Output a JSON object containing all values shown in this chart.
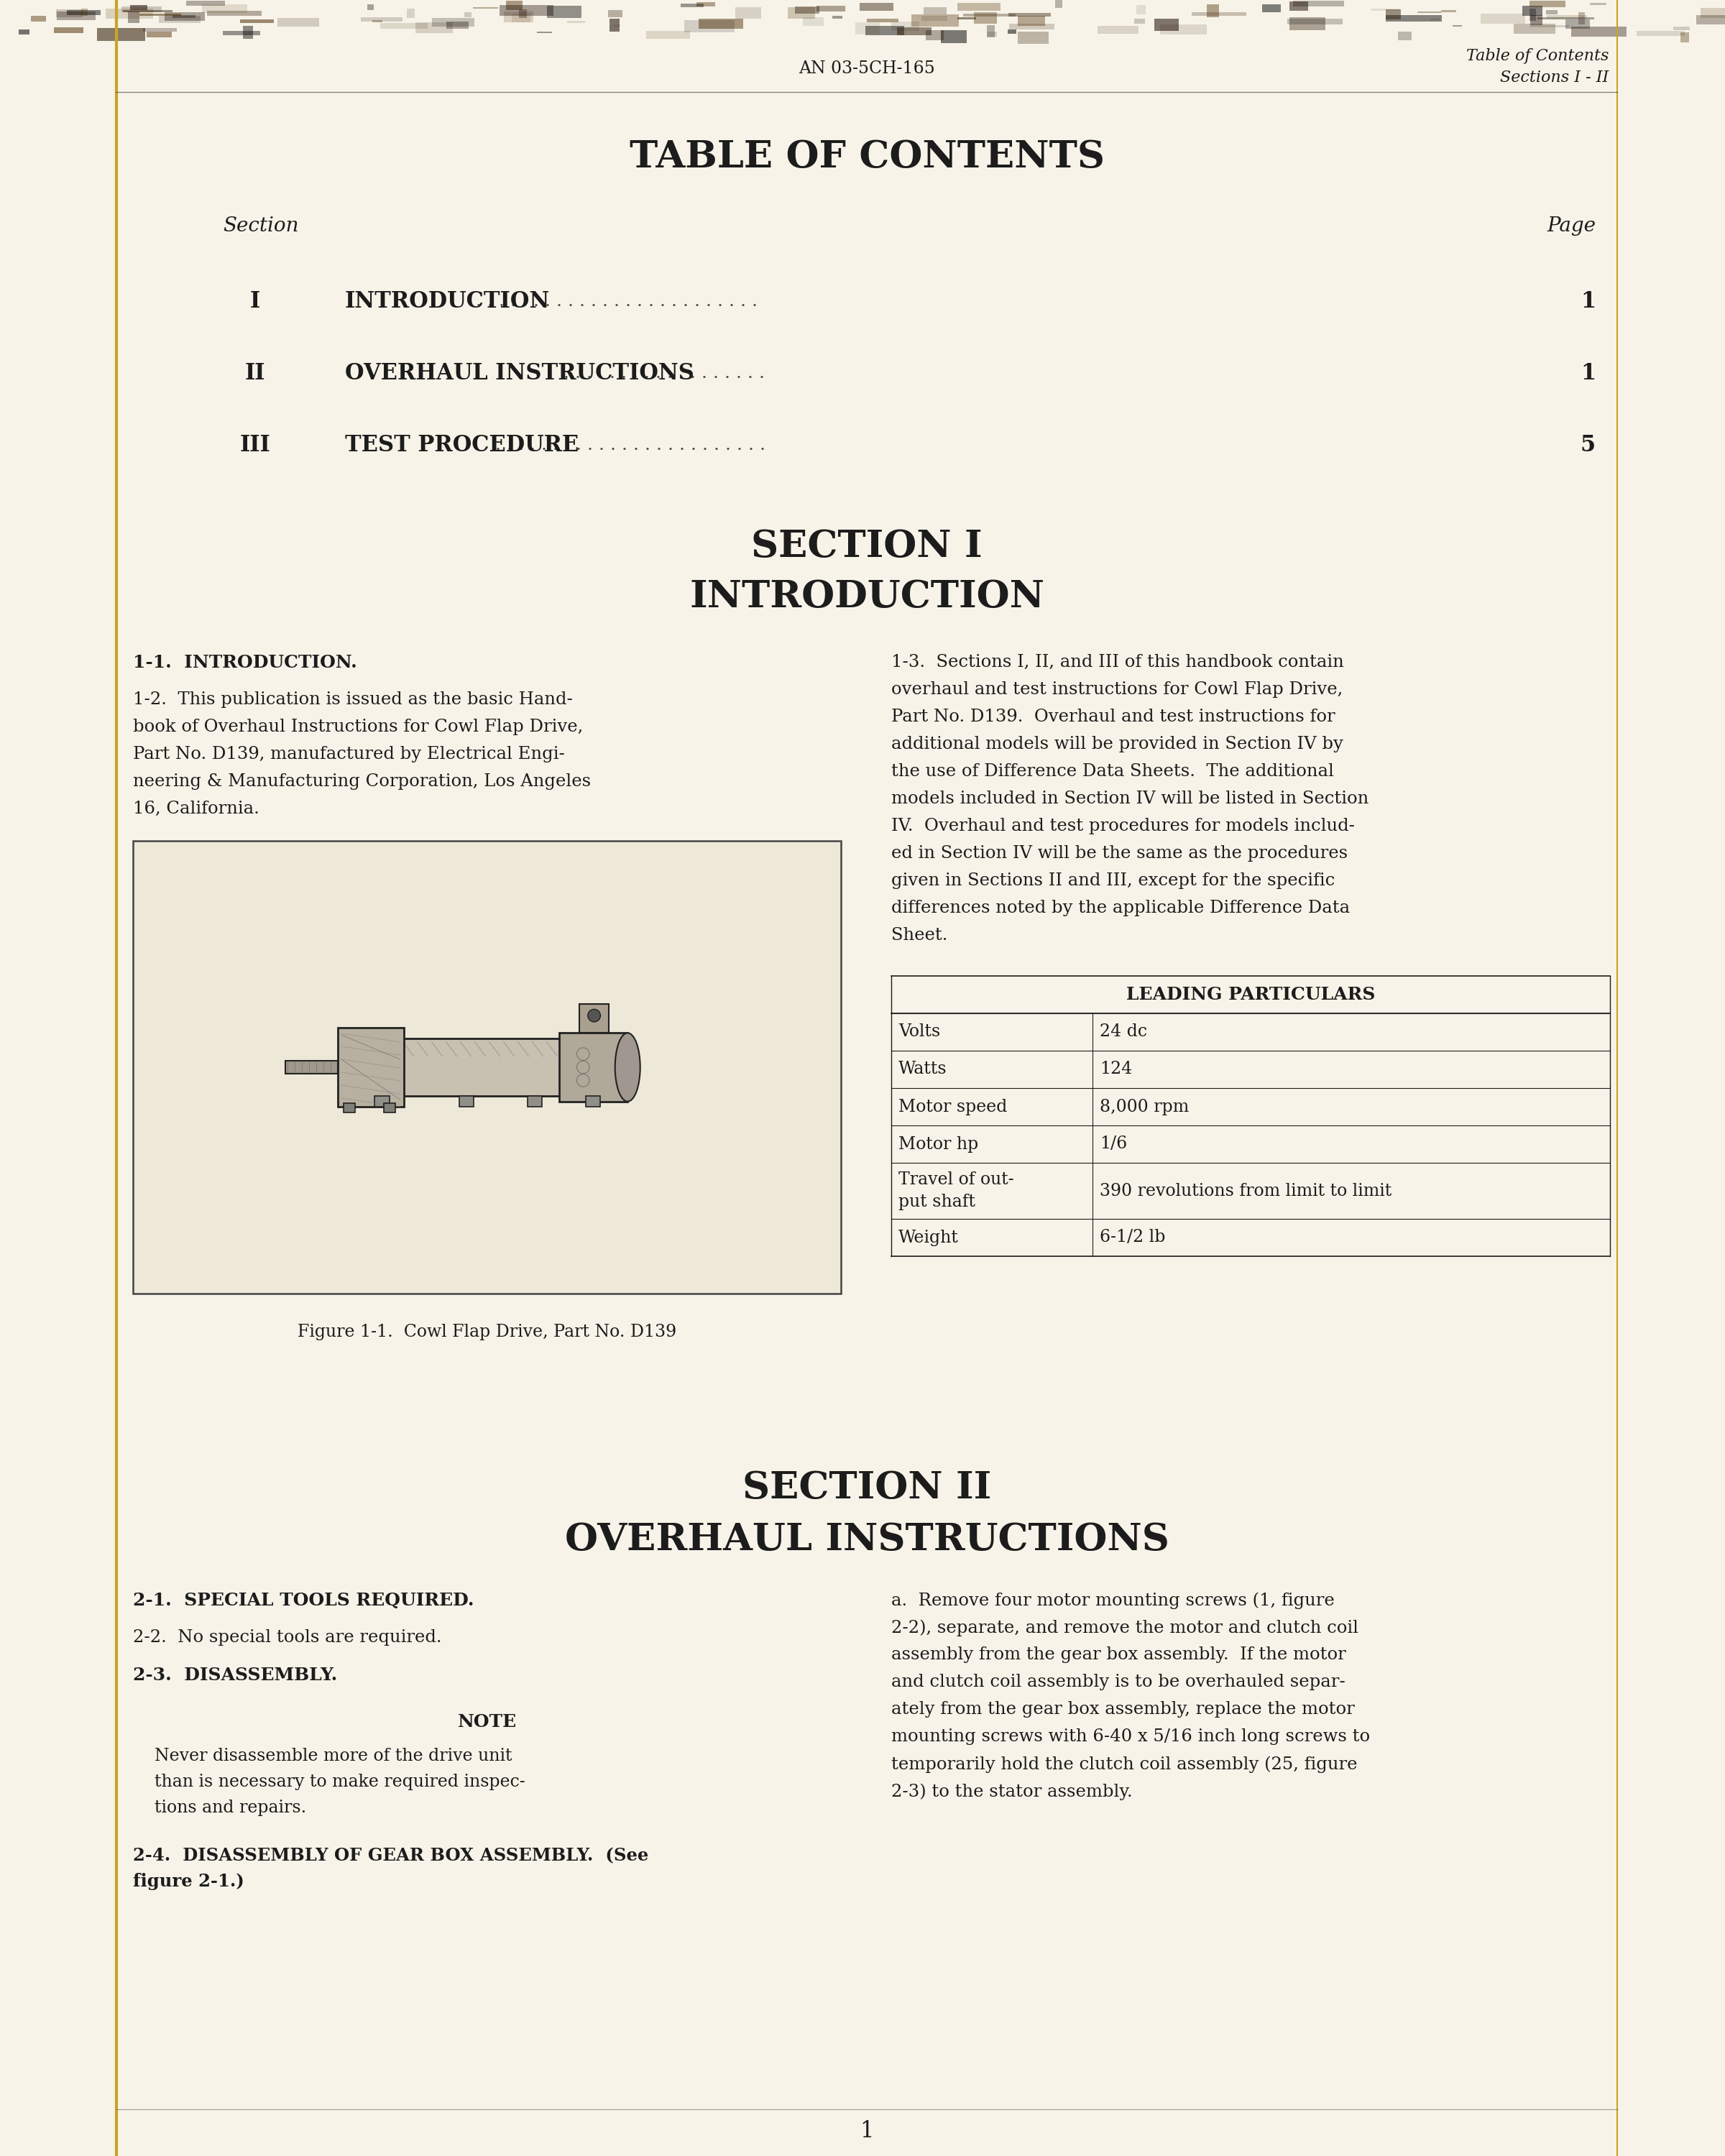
{
  "page_bg": "#f7f3e8",
  "text_color": "#1c1c1c",
  "header_doc_num": "AN 03-5CH-165",
  "header_right_line1": "Table of Contents",
  "header_right_line2": "Sections I - II",
  "toc_title": "TABLE OF CONTENTS",
  "toc_section_label": "Section",
  "toc_page_label": "Page",
  "toc_entries": [
    {
      "roman": "I",
      "title": "INTRODUCTION",
      "dots": ". . . . . . . . . . . . . . . . . . . . . . . . .",
      "page": "1"
    },
    {
      "roman": "II",
      "title": "OVERHAUL INSTRUCTIONS",
      "dots": ". . . . . . . . . . . . . . . . . .",
      "page": "1"
    },
    {
      "roman": "III",
      "title": "TEST PROCEDURE",
      "dots": ". . . . . . . . . . . . . . . . . . . . . . . .",
      "page": "5"
    }
  ],
  "sec1_heading1": "SECTION I",
  "sec1_heading2": "INTRODUCTION",
  "intro_label": "1-1.  INTRODUCTION.",
  "intro_para1_col1_lines": [
    "1-2.  This publication is issued as the basic Hand-",
    "book of Overhaul Instructions for Cowl Flap Drive,",
    "Part No. D139, manufactured by Electrical Engi-",
    "neering & Manufacturing Corporation, Los Angeles",
    "16, California."
  ],
  "figure_caption": "Figure 1-1.  Cowl Flap Drive, Part No. D139",
  "intro_para1_col2_lines": [
    "1-3.  Sections I, II, and III of this handbook contain",
    "overhaul and test instructions for Cowl Flap Drive,",
    "Part No. D139.  Overhaul and test instructions for",
    "additional models will be provided in Section IV by",
    "the use of Difference Data Sheets.  The additional",
    "models included in Section IV will be listed in Section",
    "IV.  Overhaul and test procedures for models includ-",
    "ed in Section IV will be the same as the procedures",
    "given in Sections II and III, except for the specific",
    "differences noted by the applicable Difference Data",
    "Sheet."
  ],
  "table_title": "LEADING PARTICULARS",
  "table_rows": [
    {
      "label": "Volts",
      "value": "24 dc"
    },
    {
      "label": "Watts",
      "value": "124"
    },
    {
      "label": "Motor speed",
      "value": "8,000 rpm"
    },
    {
      "label": "Motor hp",
      "value": "1/6"
    },
    {
      "label": "Travel of out-\nput shaft",
      "value": "390 revolutions from limit to limit"
    },
    {
      "label": "Weight",
      "value": "6-1/2 lb"
    }
  ],
  "sec2_heading1": "SECTION II",
  "sec2_heading2": "OVERHAUL INSTRUCTIONS",
  "sec2_label1": "2-1.  SPECIAL TOOLS REQUIRED.",
  "sec2_para2": "2-2.  No special tools are required.",
  "sec2_label3": "2-3.  DISASSEMBLY.",
  "note_label": "NOTE",
  "note_lines": [
    "Never disassemble more of the drive unit",
    "than is necessary to make required inspec-",
    "tions and repairs."
  ],
  "sec2_col2_lines": [
    "a.  Remove four motor mounting screws (1, figure",
    "2-2), separate, and remove the motor and clutch coil",
    "assembly from the gear box assembly.  If the motor",
    "and clutch coil assembly is to be overhauled separ-",
    "ately from the gear box assembly, replace the motor",
    "mounting screws with 6-40 x 5/16 inch long screws to",
    "temporarily hold the clutch coil assembly (25, figure",
    "2-3) to the stator assembly."
  ],
  "sec2_label4_lines": [
    "2-4.  DISASSEMBLY OF GEAR BOX ASSEMBLY.  (See",
    "figure 2-1.)"
  ],
  "page_number": "1",
  "margin_line_color": "#c8a428",
  "line_color": "#888888"
}
